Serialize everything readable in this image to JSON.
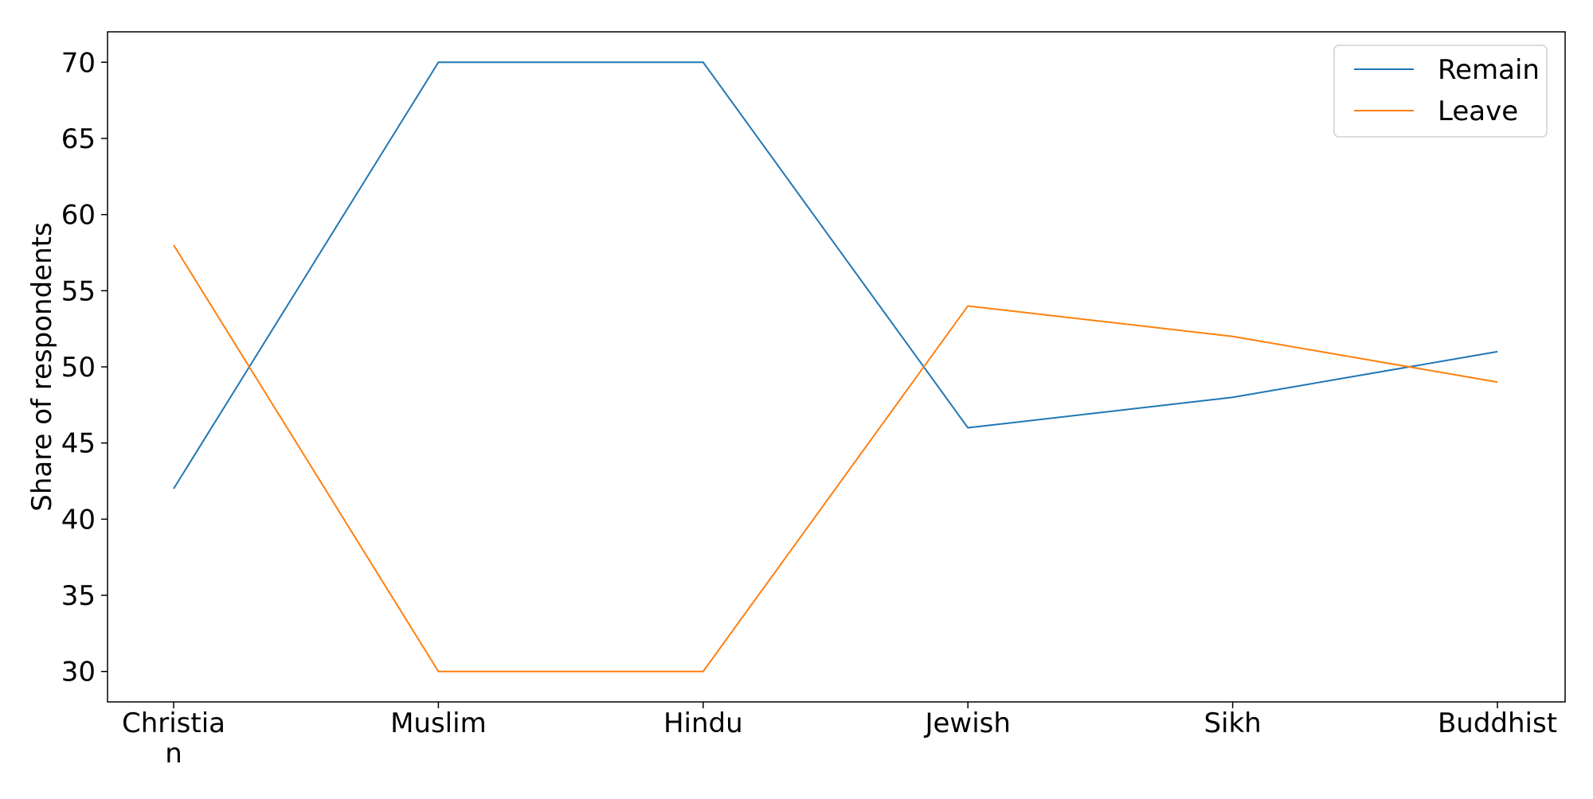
{
  "chart_data": {
    "type": "line",
    "title": "",
    "xlabel": "",
    "ylabel": "Share of respondents",
    "categories": [
      "Christian",
      "Muslim",
      "Hindu",
      "Jewish",
      "Sikh",
      "Buddhist"
    ],
    "category_display": [
      [
        "Christia",
        "n"
      ],
      [
        "Muslim"
      ],
      [
        "Hindu"
      ],
      [
        "Jewish"
      ],
      [
        "Sikh"
      ],
      [
        "Buddhist"
      ]
    ],
    "series": [
      {
        "name": "Remain",
        "color": "#1f77b4",
        "values": [
          42,
          70,
          70,
          46,
          48,
          51
        ]
      },
      {
        "name": "Leave",
        "color": "#ff7f0e",
        "values": [
          58,
          30,
          30,
          54,
          52,
          49
        ]
      }
    ],
    "ylim": [
      28,
      72
    ],
    "yticks": [
      30,
      35,
      40,
      45,
      50,
      55,
      60,
      65,
      70
    ],
    "grid": false,
    "legend_position": "top-right"
  }
}
